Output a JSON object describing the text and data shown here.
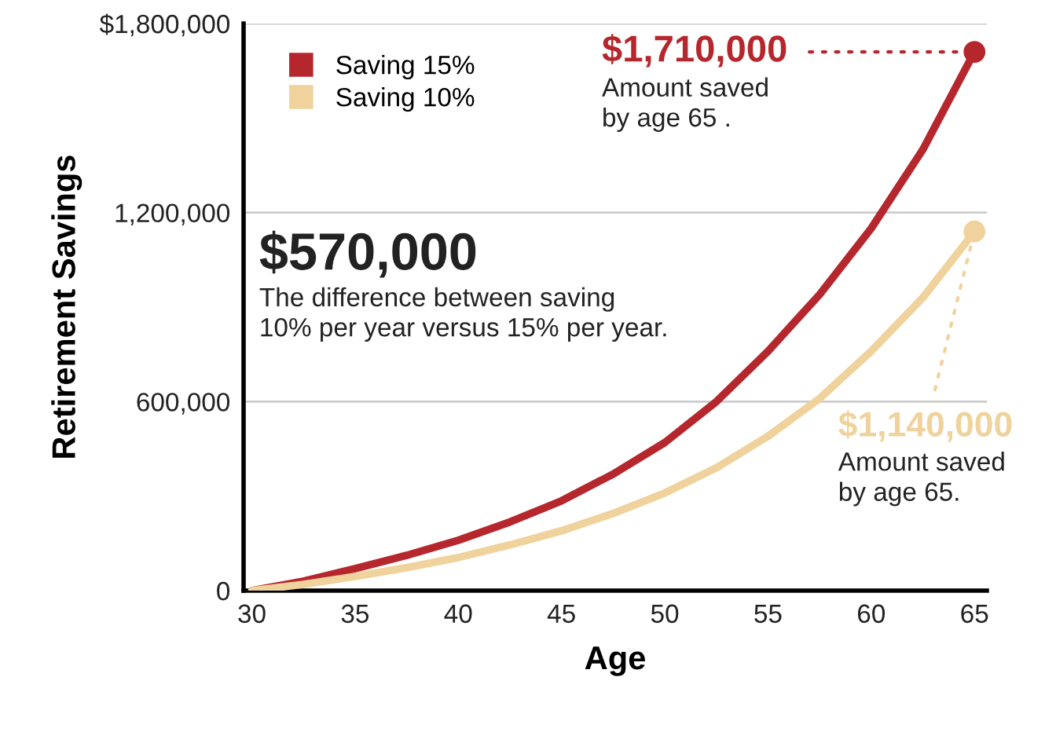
{
  "chart_data": {
    "type": "line",
    "xlabel": "Age",
    "ylabel": "Retirement Savings",
    "x": [
      30,
      32.5,
      35,
      37.5,
      40,
      42.5,
      45,
      47.5,
      50,
      52.5,
      55,
      57.5,
      60,
      62.5,
      65
    ],
    "series": [
      {
        "name": "Saving 15%",
        "color": "#b5272d",
        "values": [
          0,
          30000,
          70000,
          112000,
          160000,
          218000,
          285000,
          370000,
          470000,
          600000,
          760000,
          940000,
          1150000,
          1400000,
          1710000
        ]
      },
      {
        "name": "Saving 10%",
        "color": "#efd29c",
        "values": [
          0,
          20000,
          45000,
          73000,
          105000,
          145000,
          190000,
          245000,
          310000,
          390000,
          490000,
          610000,
          760000,
          930000,
          1140000
        ]
      }
    ],
    "xlim": [
      29.6,
      65.6
    ],
    "ylim": [
      0,
      1800000
    ],
    "xticks": [
      30,
      35,
      40,
      45,
      50,
      55,
      60,
      65
    ],
    "yticks": [
      {
        "value": 0,
        "label": "0"
      },
      {
        "value": 600000,
        "label": "600,000"
      },
      {
        "value": 1200000,
        "label": "1,200,000"
      },
      {
        "value": 1800000,
        "label": "$1,800,000"
      }
    ],
    "grid": "y",
    "legend": "top left",
    "annotations": [
      "$1,710,000",
      "Amount saved\nby age 65 .",
      {
        "text": "$1,140,000",
        "x": 65,
        "y": 1140000
      },
      "Amount saved\nby age 65.",
      "$570,000",
      "The difference between saving\n10% per year versus 15% per year."
    ]
  }
}
